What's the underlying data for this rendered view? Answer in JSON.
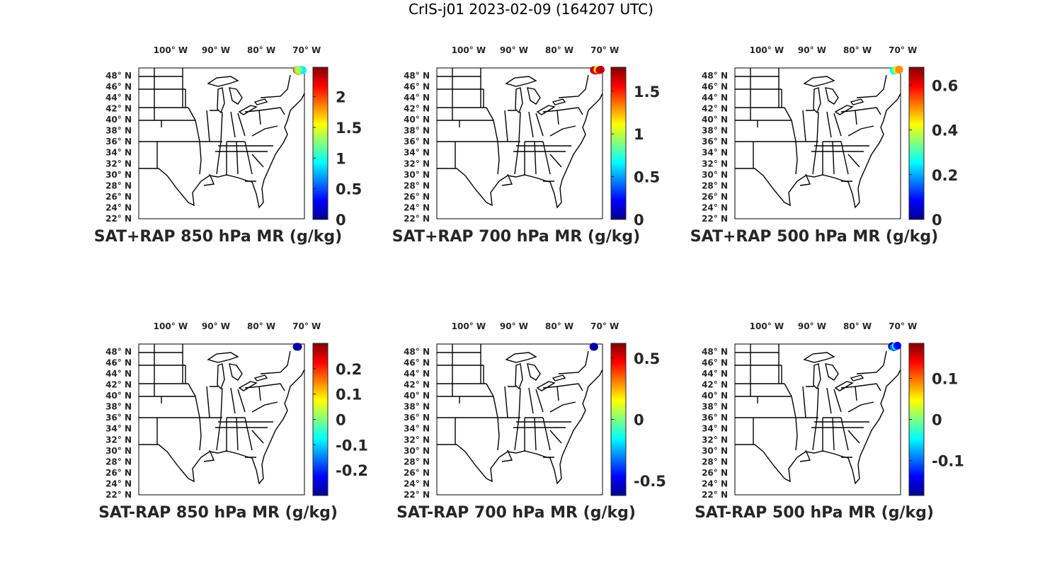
{
  "title": "CrIS-j01 2023-02-09 (164207 UTC)",
  "chart_data": [
    {
      "type": "map",
      "title": "SAT+RAP 850 hPa MR (g/kg)",
      "xlim": [
        -107,
        -70.5
      ],
      "ylim": [
        22,
        49.4
      ],
      "xticks": [
        {
          "value": -100,
          "label": "100° W"
        },
        {
          "value": -90,
          "label": "90° W"
        },
        {
          "value": -80,
          "label": "80° W"
        },
        {
          "value": -70,
          "label": "70° W"
        }
      ],
      "yticks": [
        {
          "value": 22,
          "label": "22° N"
        },
        {
          "value": 24,
          "label": "24° N"
        },
        {
          "value": 26,
          "label": "26° N"
        },
        {
          "value": 28,
          "label": "28° N"
        },
        {
          "value": 30,
          "label": "30° N"
        },
        {
          "value": 32,
          "label": "32° N"
        },
        {
          "value": 34,
          "label": "34° N"
        },
        {
          "value": 36,
          "label": "36° N"
        },
        {
          "value": 38,
          "label": "38° N"
        },
        {
          "value": 40,
          "label": "40° N"
        },
        {
          "value": 42,
          "label": "42° N"
        },
        {
          "value": 44,
          "label": "44° N"
        },
        {
          "value": 46,
          "label": "46° N"
        },
        {
          "value": 48,
          "label": "48° N"
        }
      ],
      "clim": [
        0,
        2.48
      ],
      "cticks": [
        0,
        0.5,
        1,
        1.5,
        2
      ],
      "colormap": "jet",
      "x": [
        -72.2,
        -71.8,
        -71.5,
        -71.2,
        -70.9,
        -71.9
      ],
      "y": [
        49.0,
        48.8,
        49.0,
        49.1,
        49.0,
        49.1
      ],
      "values": [
        2.0,
        1.75,
        1.5,
        1.1,
        0.9,
        1.3
      ]
    },
    {
      "type": "map",
      "title": "SAT+RAP 700 hPa MR (g/kg)",
      "xlim": [
        -107,
        -70.5
      ],
      "ylim": [
        22,
        49.4
      ],
      "xticks": [
        {
          "value": -100,
          "label": "100° W"
        },
        {
          "value": -90,
          "label": "90° W"
        },
        {
          "value": -80,
          "label": "80° W"
        },
        {
          "value": -70,
          "label": "70° W"
        }
      ],
      "yticks": [
        {
          "value": 22,
          "label": "22° N"
        },
        {
          "value": 24,
          "label": "24° N"
        },
        {
          "value": 26,
          "label": "26° N"
        },
        {
          "value": 28,
          "label": "28° N"
        },
        {
          "value": 30,
          "label": "30° N"
        },
        {
          "value": 32,
          "label": "32° N"
        },
        {
          "value": 34,
          "label": "34° N"
        },
        {
          "value": 36,
          "label": "36° N"
        },
        {
          "value": 38,
          "label": "38° N"
        },
        {
          "value": 40,
          "label": "40° N"
        },
        {
          "value": 42,
          "label": "42° N"
        },
        {
          "value": 44,
          "label": "44° N"
        },
        {
          "value": 46,
          "label": "46° N"
        },
        {
          "value": 48,
          "label": "48° N"
        }
      ],
      "clim": [
        0,
        1.78
      ],
      "cticks": [
        0,
        0.5,
        1,
        1.5
      ],
      "colormap": "jet",
      "x": [
        -72.4,
        -72.0,
        -71.6,
        -71.2,
        -70.9
      ],
      "y": [
        49.0,
        48.9,
        49.1,
        49.0,
        49.1
      ],
      "values": [
        1.7,
        1.62,
        1.1,
        1.55,
        1.68
      ]
    },
    {
      "type": "map",
      "title": "SAT+RAP 500 hPa MR (g/kg)",
      "xlim": [
        -107,
        -70.5
      ],
      "ylim": [
        22,
        49.4
      ],
      "xticks": [
        {
          "value": -100,
          "label": "100° W"
        },
        {
          "value": -90,
          "label": "90° W"
        },
        {
          "value": -80,
          "label": "80° W"
        },
        {
          "value": -70,
          "label": "70° W"
        }
      ],
      "yticks": [
        {
          "value": 22,
          "label": "22° N"
        },
        {
          "value": 24,
          "label": "24° N"
        },
        {
          "value": 26,
          "label": "26° N"
        },
        {
          "value": 28,
          "label": "28° N"
        },
        {
          "value": 30,
          "label": "30° N"
        },
        {
          "value": 32,
          "label": "32° N"
        },
        {
          "value": 34,
          "label": "34° N"
        },
        {
          "value": 36,
          "label": "36° N"
        },
        {
          "value": 38,
          "label": "38° N"
        },
        {
          "value": 40,
          "label": "40° N"
        },
        {
          "value": 42,
          "label": "42° N"
        },
        {
          "value": 44,
          "label": "44° N"
        },
        {
          "value": 46,
          "label": "46° N"
        },
        {
          "value": 48,
          "label": "48° N"
        }
      ],
      "clim": [
        0,
        0.68
      ],
      "cticks": [
        0,
        0.2,
        0.4,
        0.6
      ],
      "colormap": "jet",
      "x": [
        -72.0,
        -71.6,
        -71.3,
        -71.0,
        -70.8
      ],
      "y": [
        48.9,
        49.0,
        49.1,
        49.0,
        49.1
      ],
      "values": [
        0.25,
        0.3,
        0.4,
        0.45,
        0.5
      ]
    },
    {
      "type": "map",
      "title": "SAT-RAP 850 hPa MR (g/kg)",
      "xlim": [
        -107,
        -70.5
      ],
      "ylim": [
        22,
        49.4
      ],
      "xticks": [
        {
          "value": -100,
          "label": "100° W"
        },
        {
          "value": -90,
          "label": "90° W"
        },
        {
          "value": -80,
          "label": "80° W"
        },
        {
          "value": -70,
          "label": "70° W"
        }
      ],
      "yticks": [
        {
          "value": 22,
          "label": "22° N"
        },
        {
          "value": 24,
          "label": "24° N"
        },
        {
          "value": 26,
          "label": "26° N"
        },
        {
          "value": 28,
          "label": "28° N"
        },
        {
          "value": 30,
          "label": "30° N"
        },
        {
          "value": 32,
          "label": "32° N"
        },
        {
          "value": 34,
          "label": "34° N"
        },
        {
          "value": 36,
          "label": "36° N"
        },
        {
          "value": 38,
          "label": "38° N"
        },
        {
          "value": 40,
          "label": "40° N"
        },
        {
          "value": 42,
          "label": "42° N"
        },
        {
          "value": 44,
          "label": "44° N"
        },
        {
          "value": 46,
          "label": "46° N"
        },
        {
          "value": 48,
          "label": "48° N"
        }
      ],
      "clim": [
        -0.3,
        0.3
      ],
      "cticks": [
        -0.2,
        -0.1,
        0,
        0.1,
        0.2
      ],
      "colormap": "jet",
      "x": [
        -72.2,
        -71.9
      ],
      "y": [
        48.9,
        48.9
      ],
      "values": [
        -0.29,
        -0.28
      ]
    },
    {
      "type": "map",
      "title": "SAT-RAP 700 hPa MR (g/kg)",
      "xlim": [
        -107,
        -70.5
      ],
      "ylim": [
        22,
        49.4
      ],
      "xticks": [
        {
          "value": -100,
          "label": "100° W"
        },
        {
          "value": -90,
          "label": "90° W"
        },
        {
          "value": -80,
          "label": "80° W"
        },
        {
          "value": -70,
          "label": "70° W"
        }
      ],
      "yticks": [
        {
          "value": 22,
          "label": "22° N"
        },
        {
          "value": 24,
          "label": "24° N"
        },
        {
          "value": 26,
          "label": "26° N"
        },
        {
          "value": 28,
          "label": "28° N"
        },
        {
          "value": 30,
          "label": "30° N"
        },
        {
          "value": 32,
          "label": "32° N"
        },
        {
          "value": 34,
          "label": "34° N"
        },
        {
          "value": 36,
          "label": "36° N"
        },
        {
          "value": 38,
          "label": "38° N"
        },
        {
          "value": 40,
          "label": "40° N"
        },
        {
          "value": 42,
          "label": "42° N"
        },
        {
          "value": 44,
          "label": "44° N"
        },
        {
          "value": 46,
          "label": "46° N"
        },
        {
          "value": 48,
          "label": "48° N"
        }
      ],
      "clim": [
        -0.62,
        0.62
      ],
      "cticks": [
        -0.5,
        0,
        0.5
      ],
      "colormap": "jet",
      "x": [
        -72.5,
        -72.3
      ],
      "y": [
        48.9,
        48.9
      ],
      "values": [
        -0.6,
        -0.58
      ]
    },
    {
      "type": "map",
      "title": "SAT-RAP 500 hPa MR (g/kg)",
      "xlim": [
        -107,
        -70.5
      ],
      "ylim": [
        22,
        49.4
      ],
      "xticks": [
        {
          "value": -100,
          "label": "100° W"
        },
        {
          "value": -90,
          "label": "90° W"
        },
        {
          "value": -80,
          "label": "80° W"
        },
        {
          "value": -70,
          "label": "70° W"
        }
      ],
      "yticks": [
        {
          "value": 22,
          "label": "22° N"
        },
        {
          "value": 24,
          "label": "24° N"
        },
        {
          "value": 26,
          "label": "26° N"
        },
        {
          "value": 28,
          "label": "28° N"
        },
        {
          "value": 30,
          "label": "30° N"
        },
        {
          "value": 32,
          "label": "32° N"
        },
        {
          "value": 34,
          "label": "34° N"
        },
        {
          "value": 36,
          "label": "36° N"
        },
        {
          "value": 38,
          "label": "38° N"
        },
        {
          "value": 40,
          "label": "40° N"
        },
        {
          "value": 42,
          "label": "42° N"
        },
        {
          "value": 44,
          "label": "44° N"
        },
        {
          "value": 46,
          "label": "46° N"
        },
        {
          "value": 48,
          "label": "48° N"
        }
      ],
      "clim": [
        -0.185,
        0.185
      ],
      "cticks": [
        -0.1,
        0,
        0.1
      ],
      "colormap": "jet",
      "x": [
        -72.4,
        -72.0,
        -71.6,
        -71.2
      ],
      "y": [
        49.0,
        48.8,
        49.0,
        49.1
      ],
      "values": [
        -0.17,
        -0.1,
        -0.05,
        -0.14
      ]
    }
  ]
}
